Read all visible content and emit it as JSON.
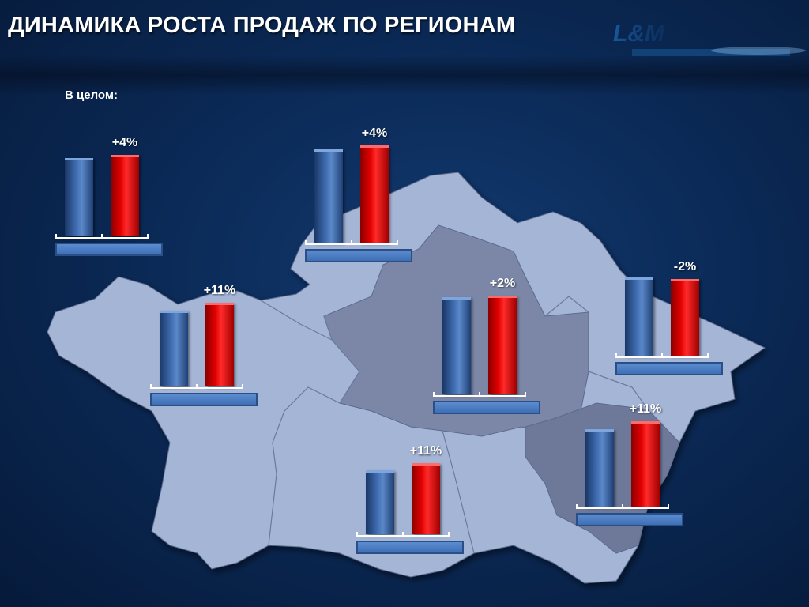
{
  "title": "ДИНАМИКА РОСТА ПРОДАЖ ПО РЕГИОНАМ",
  "logo_text": "L&M",
  "subtitle": "В целом:",
  "colors": {
    "prev_bar": "#3f6cb0",
    "curr_bar": "#e00000",
    "map_light": "#a5b5d6",
    "map_dark": "#7c87a8",
    "background": "#0b2a57"
  },
  "chart_data": {
    "type": "bar",
    "description_units": "percent growth",
    "regions": [
      {
        "id": "overall",
        "prev": 100,
        "curr": 104,
        "label": "+4%"
      },
      {
        "id": "north",
        "prev": 100,
        "curr": 104,
        "label": "+4%"
      },
      {
        "id": "west",
        "prev": 100,
        "curr": 111,
        "label": "+11%"
      },
      {
        "id": "center",
        "prev": 100,
        "curr": 102,
        "label": "+2%"
      },
      {
        "id": "east",
        "prev": 100,
        "curr": 98,
        "label": "-2%"
      },
      {
        "id": "south",
        "prev": 100,
        "curr": 111,
        "label": "+11%"
      },
      {
        "id": "south-east",
        "prev": 100,
        "curr": 111,
        "label": "+11%"
      }
    ]
  }
}
